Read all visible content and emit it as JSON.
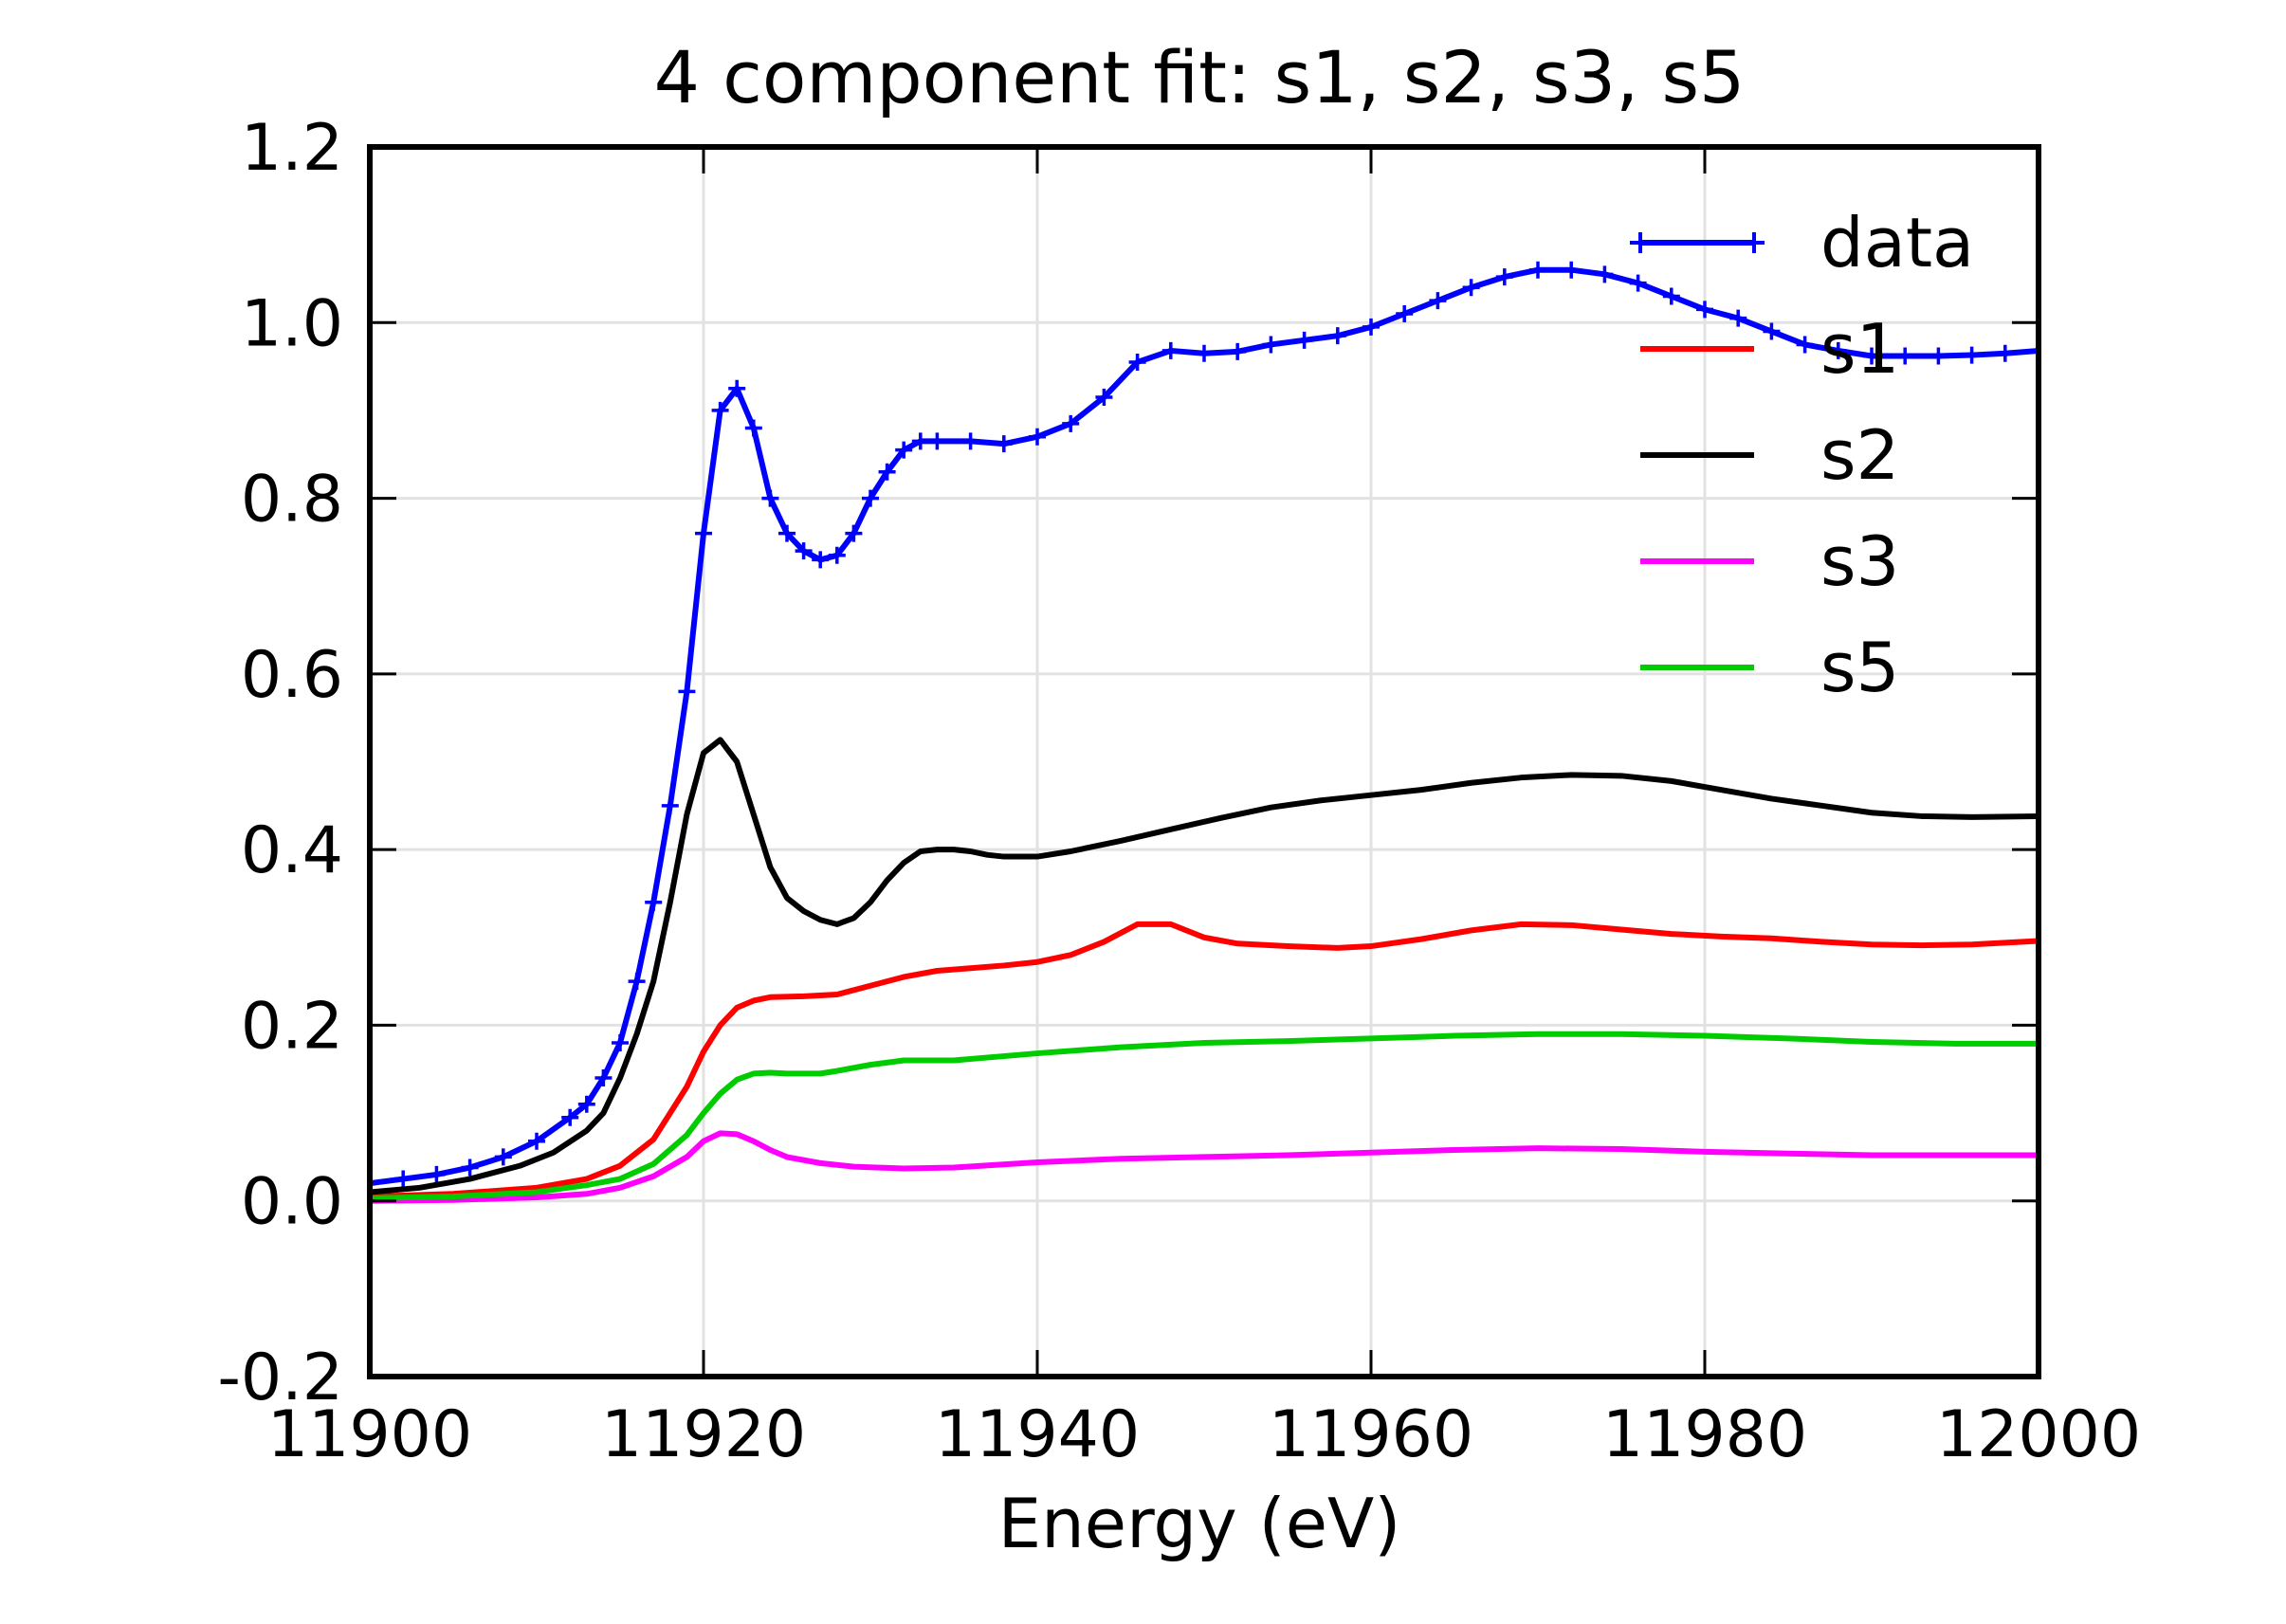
{
  "chart_data": {
    "type": "line",
    "title": "4 component fit:  s1, s2, s3, s5",
    "xlabel": "Energy (eV)",
    "ylabel": "",
    "xlim": [
      11900,
      12000
    ],
    "ylim": [
      -0.2,
      1.2
    ],
    "xticks": [
      11900,
      11920,
      11940,
      11960,
      11980,
      12000
    ],
    "xtick_labels": [
      "11900",
      "11920",
      "11940",
      "11960",
      "11980",
      "12000"
    ],
    "yticks": [
      -0.2,
      0.0,
      0.2,
      0.4,
      0.6,
      0.8,
      1.0,
      1.2
    ],
    "ytick_labels": [
      "-0.2",
      "0.0",
      "0.2",
      "0.4",
      "0.6",
      "0.8",
      "1.0",
      "1.2"
    ],
    "grid": true,
    "legend_position": "top-right",
    "series": [
      {
        "name": "data",
        "color": "#0000ff",
        "marker": "plus",
        "points": [
          [
            11900,
            0.02
          ],
          [
            11902,
            0.025
          ],
          [
            11904,
            0.03
          ],
          [
            11906,
            0.038
          ],
          [
            11908,
            0.05
          ],
          [
            11910,
            0.068
          ],
          [
            11912,
            0.095
          ],
          [
            11913,
            0.11
          ],
          [
            11914,
            0.14
          ],
          [
            11915,
            0.18
          ],
          [
            11916,
            0.25
          ],
          [
            11917,
            0.34
          ],
          [
            11918,
            0.45
          ],
          [
            11919,
            0.58
          ],
          [
            11920,
            0.76
          ],
          [
            11921,
            0.9
          ],
          [
            11922,
            0.925
          ],
          [
            11923,
            0.88
          ],
          [
            11924,
            0.8
          ],
          [
            11925,
            0.76
          ],
          [
            11926,
            0.74
          ],
          [
            11927,
            0.73
          ],
          [
            11928,
            0.735
          ],
          [
            11929,
            0.76
          ],
          [
            11930,
            0.8
          ],
          [
            11931,
            0.83
          ],
          [
            11932,
            0.855
          ],
          [
            11933,
            0.865
          ],
          [
            11934,
            0.865
          ],
          [
            11936,
            0.865
          ],
          [
            11938,
            0.862
          ],
          [
            11940,
            0.87
          ],
          [
            11942,
            0.885
          ],
          [
            11944,
            0.915
          ],
          [
            11946,
            0.955
          ],
          [
            11948,
            0.968
          ],
          [
            11950,
            0.965
          ],
          [
            11952,
            0.967
          ],
          [
            11954,
            0.975
          ],
          [
            11956,
            0.98
          ],
          [
            11958,
            0.985
          ],
          [
            11960,
            0.995
          ],
          [
            11962,
            1.01
          ],
          [
            11964,
            1.025
          ],
          [
            11966,
            1.04
          ],
          [
            11968,
            1.052
          ],
          [
            11970,
            1.06
          ],
          [
            11972,
            1.06
          ],
          [
            11974,
            1.055
          ],
          [
            11976,
            1.045
          ],
          [
            11978,
            1.03
          ],
          [
            11980,
            1.015
          ],
          [
            11982,
            1.005
          ],
          [
            11984,
            0.99
          ],
          [
            11986,
            0.975
          ],
          [
            11988,
            0.968
          ],
          [
            11990,
            0.962
          ],
          [
            11992,
            0.962
          ],
          [
            11994,
            0.962
          ],
          [
            11996,
            0.963
          ],
          [
            11998,
            0.965
          ],
          [
            12000,
            0.968
          ]
        ]
      },
      {
        "name": "s1",
        "color": "#ff0000",
        "marker": "none",
        "points": [
          [
            11900,
            0.005
          ],
          [
            11905,
            0.008
          ],
          [
            11910,
            0.015
          ],
          [
            11913,
            0.025
          ],
          [
            11915,
            0.04
          ],
          [
            11917,
            0.07
          ],
          [
            11919,
            0.13
          ],
          [
            11920,
            0.17
          ],
          [
            11921,
            0.2
          ],
          [
            11922,
            0.22
          ],
          [
            11923,
            0.228
          ],
          [
            11924,
            0.232
          ],
          [
            11926,
            0.233
          ],
          [
            11928,
            0.235
          ],
          [
            11930,
            0.245
          ],
          [
            11932,
            0.255
          ],
          [
            11934,
            0.262
          ],
          [
            11936,
            0.265
          ],
          [
            11938,
            0.268
          ],
          [
            11940,
            0.272
          ],
          [
            11942,
            0.28
          ],
          [
            11944,
            0.295
          ],
          [
            11946,
            0.315
          ],
          [
            11948,
            0.315
          ],
          [
            11950,
            0.3
          ],
          [
            11952,
            0.293
          ],
          [
            11955,
            0.29
          ],
          [
            11958,
            0.288
          ],
          [
            11960,
            0.29
          ],
          [
            11963,
            0.298
          ],
          [
            11966,
            0.308
          ],
          [
            11969,
            0.315
          ],
          [
            11972,
            0.314
          ],
          [
            11975,
            0.309
          ],
          [
            11978,
            0.304
          ],
          [
            11981,
            0.301
          ],
          [
            11984,
            0.299
          ],
          [
            11987,
            0.295
          ],
          [
            11990,
            0.292
          ],
          [
            11993,
            0.291
          ],
          [
            11996,
            0.292
          ],
          [
            12000,
            0.296
          ]
        ]
      },
      {
        "name": "s2",
        "color": "#000000",
        "marker": "none",
        "points": [
          [
            11900,
            0.01
          ],
          [
            11903,
            0.015
          ],
          [
            11906,
            0.025
          ],
          [
            11909,
            0.04
          ],
          [
            11911,
            0.055
          ],
          [
            11913,
            0.08
          ],
          [
            11914,
            0.1
          ],
          [
            11915,
            0.14
          ],
          [
            11916,
            0.19
          ],
          [
            11917,
            0.25
          ],
          [
            11918,
            0.34
          ],
          [
            11919,
            0.44
          ],
          [
            11920,
            0.51
          ],
          [
            11921,
            0.525
          ],
          [
            11922,
            0.5
          ],
          [
            11923,
            0.44
          ],
          [
            11924,
            0.38
          ],
          [
            11925,
            0.345
          ],
          [
            11926,
            0.33
          ],
          [
            11927,
            0.32
          ],
          [
            11928,
            0.315
          ],
          [
            11929,
            0.322
          ],
          [
            11930,
            0.34
          ],
          [
            11931,
            0.365
          ],
          [
            11932,
            0.385
          ],
          [
            11933,
            0.398
          ],
          [
            11934,
            0.4
          ],
          [
            11935,
            0.4
          ],
          [
            11936,
            0.398
          ],
          [
            11937,
            0.394
          ],
          [
            11938,
            0.392
          ],
          [
            11940,
            0.392
          ],
          [
            11942,
            0.398
          ],
          [
            11945,
            0.41
          ],
          [
            11948,
            0.423
          ],
          [
            11951,
            0.436
          ],
          [
            11954,
            0.448
          ],
          [
            11957,
            0.456
          ],
          [
            11960,
            0.462
          ],
          [
            11963,
            0.468
          ],
          [
            11966,
            0.476
          ],
          [
            11969,
            0.482
          ],
          [
            11972,
            0.485
          ],
          [
            11975,
            0.484
          ],
          [
            11978,
            0.478
          ],
          [
            11981,
            0.468
          ],
          [
            11984,
            0.458
          ],
          [
            11987,
            0.45
          ],
          [
            11990,
            0.442
          ],
          [
            11993,
            0.438
          ],
          [
            11996,
            0.437
          ],
          [
            12000,
            0.438
          ]
        ]
      },
      {
        "name": "s3",
        "color": "#ff00ff",
        "marker": "none",
        "points": [
          [
            11900,
            0.0
          ],
          [
            11905,
            0.001
          ],
          [
            11910,
            0.004
          ],
          [
            11913,
            0.008
          ],
          [
            11915,
            0.015
          ],
          [
            11917,
            0.028
          ],
          [
            11919,
            0.05
          ],
          [
            11920,
            0.068
          ],
          [
            11921,
            0.077
          ],
          [
            11922,
            0.076
          ],
          [
            11923,
            0.068
          ],
          [
            11924,
            0.058
          ],
          [
            11925,
            0.05
          ],
          [
            11927,
            0.043
          ],
          [
            11929,
            0.039
          ],
          [
            11932,
            0.037
          ],
          [
            11935,
            0.038
          ],
          [
            11940,
            0.044
          ],
          [
            11945,
            0.048
          ],
          [
            11950,
            0.05
          ],
          [
            11955,
            0.052
          ],
          [
            11960,
            0.055
          ],
          [
            11965,
            0.058
          ],
          [
            11970,
            0.06
          ],
          [
            11975,
            0.059
          ],
          [
            11980,
            0.056
          ],
          [
            11985,
            0.054
          ],
          [
            11990,
            0.052
          ],
          [
            11995,
            0.052
          ],
          [
            12000,
            0.052
          ]
        ]
      },
      {
        "name": "s5",
        "color": "#00cc00",
        "marker": "none",
        "points": [
          [
            11900,
            0.003
          ],
          [
            11905,
            0.005
          ],
          [
            11910,
            0.01
          ],
          [
            11913,
            0.018
          ],
          [
            11915,
            0.025
          ],
          [
            11917,
            0.042
          ],
          [
            11919,
            0.075
          ],
          [
            11920,
            0.1
          ],
          [
            11921,
            0.122
          ],
          [
            11922,
            0.138
          ],
          [
            11923,
            0.145
          ],
          [
            11924,
            0.146
          ],
          [
            11925,
            0.145
          ],
          [
            11927,
            0.145
          ],
          [
            11928,
            0.148
          ],
          [
            11930,
            0.155
          ],
          [
            11932,
            0.16
          ],
          [
            11935,
            0.16
          ],
          [
            11940,
            0.168
          ],
          [
            11945,
            0.175
          ],
          [
            11950,
            0.18
          ],
          [
            11955,
            0.182
          ],
          [
            11960,
            0.185
          ],
          [
            11965,
            0.188
          ],
          [
            11970,
            0.19
          ],
          [
            11975,
            0.19
          ],
          [
            11980,
            0.188
          ],
          [
            11985,
            0.185
          ],
          [
            11990,
            0.181
          ],
          [
            11995,
            0.179
          ],
          [
            12000,
            0.179
          ]
        ]
      }
    ]
  }
}
